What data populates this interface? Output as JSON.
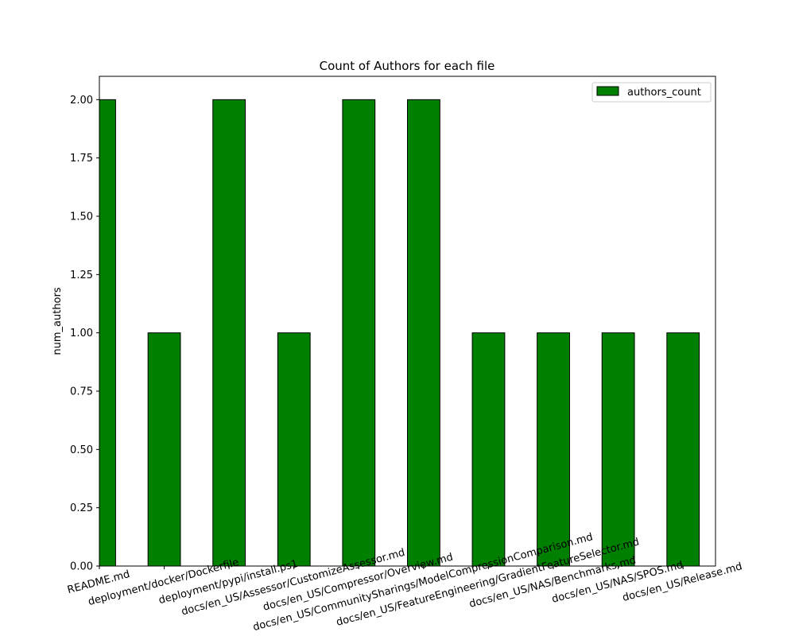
{
  "chart_data": {
    "type": "bar",
    "title": "Count of Authors for each file",
    "xlabel": "",
    "ylabel": "num_authors",
    "categories": [
      "README.md",
      "deployment/docker/Dockerfile",
      "deployment/pypi/install.ps1",
      "docs/en_US/Assessor/CustomizeAssessor.md",
      "docs/en_US/Compressor/Overview.md",
      "docs/en_US/CommunitySharings/ModelCompressionComparison.md",
      "docs/en_US/FeatureEngineering/GradientFeatureSelector.md",
      "docs/en_US/NAS/Benchmarks.md",
      "docs/en_US/NAS/SPOS.md",
      "docs/en_US/Release.md"
    ],
    "series": [
      {
        "name": "authors_count",
        "values": [
          2,
          1,
          2,
          1,
          2,
          2,
          1,
          1,
          1,
          1
        ],
        "color": "#008000",
        "edge_color": "#000000"
      }
    ],
    "yticks": [
      "0.00",
      "0.25",
      "0.50",
      "0.75",
      "1.00",
      "1.25",
      "1.50",
      "1.75",
      "2.00"
    ],
    "ylim": [
      0,
      2.1
    ],
    "grid": false,
    "legend_position": "top-right"
  }
}
